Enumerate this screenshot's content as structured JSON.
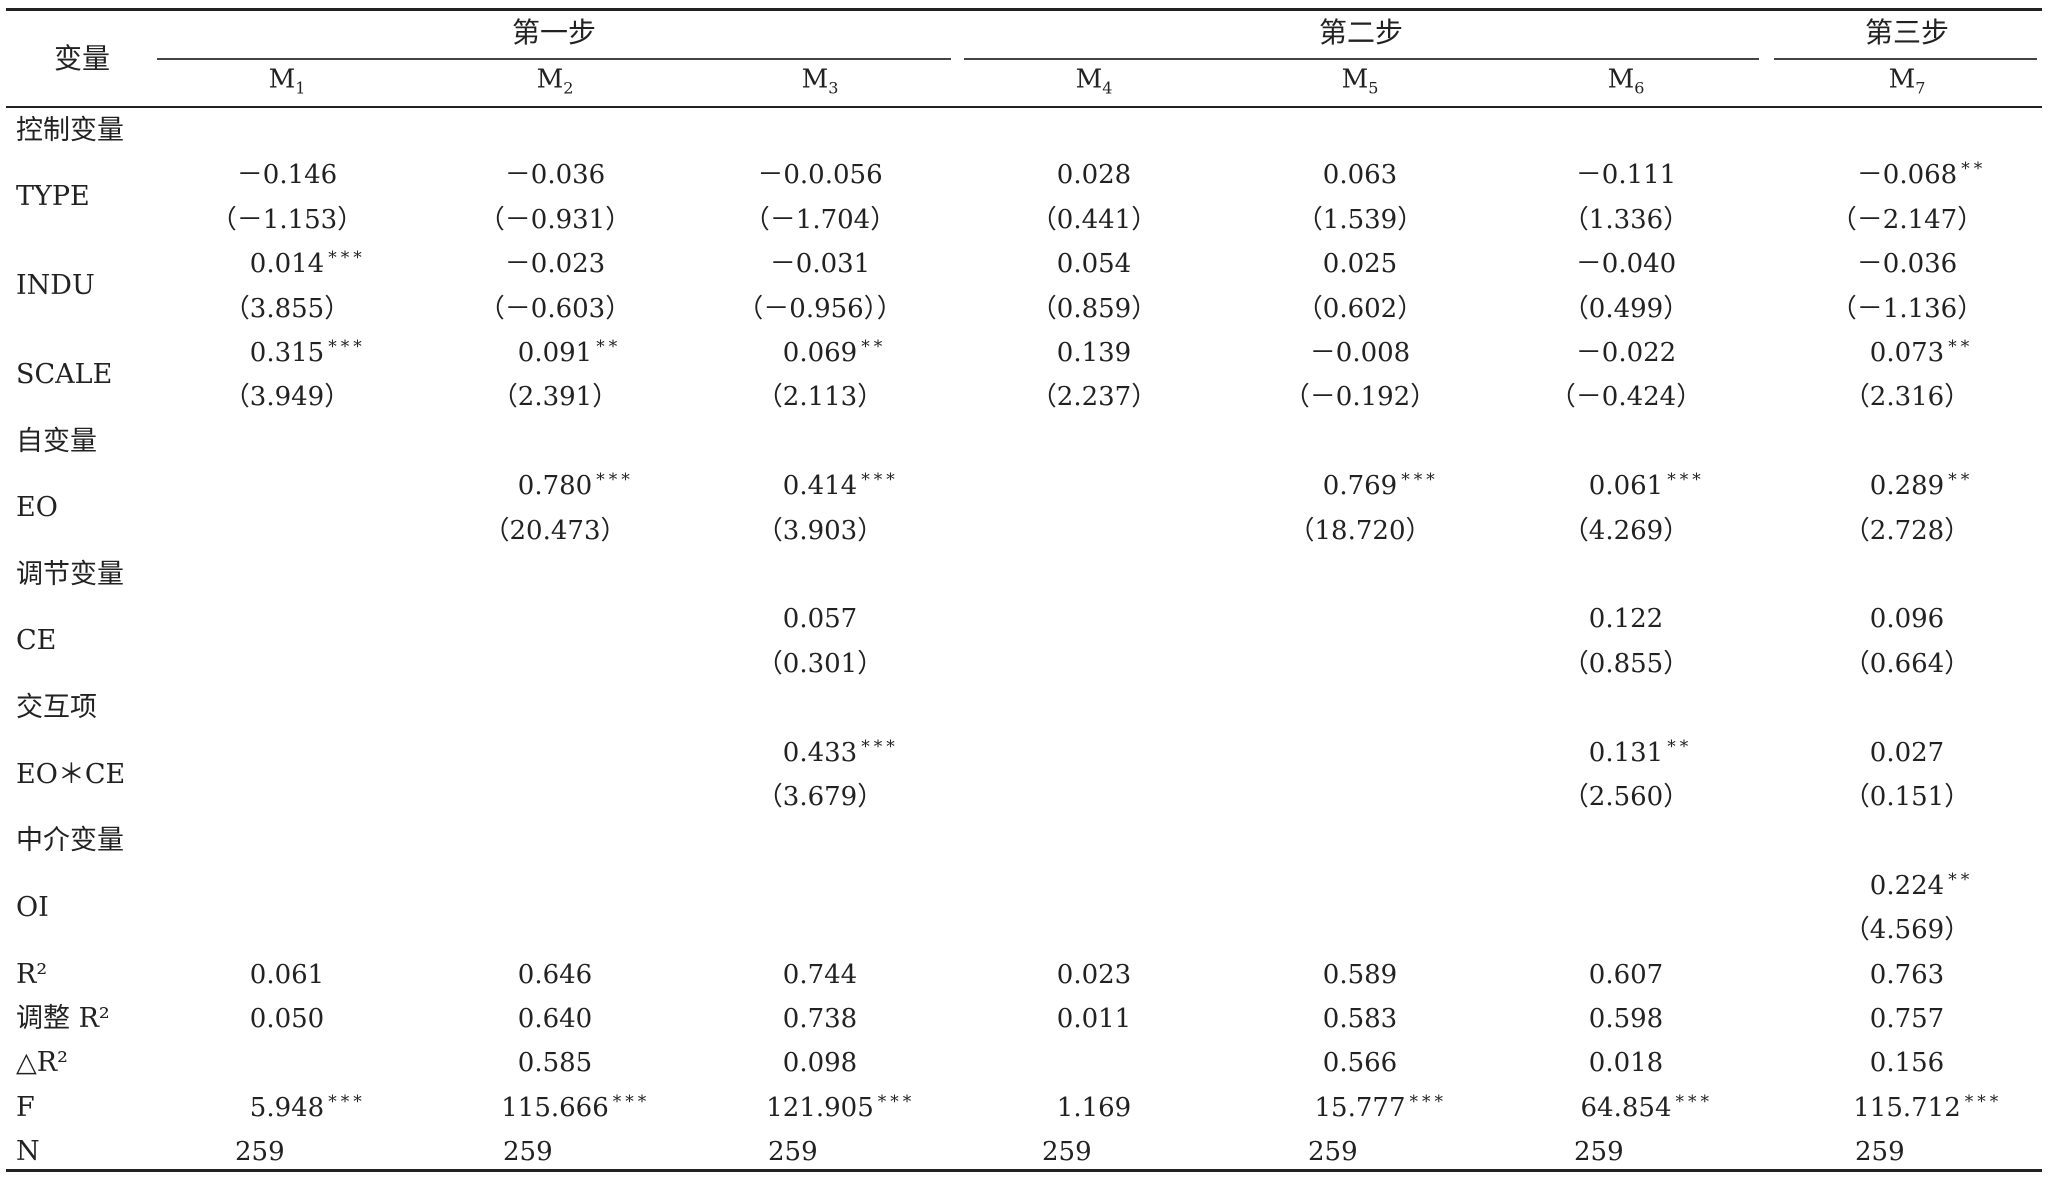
{
  "header": {
    "variable_label": "变量",
    "groups": [
      {
        "label": "第一步"
      },
      {
        "label": "第二步"
      },
      {
        "label": "第三步"
      }
    ],
    "models": [
      {
        "base": "M",
        "sub": "1"
      },
      {
        "base": "M",
        "sub": "2"
      },
      {
        "base": "M",
        "sub": "3"
      },
      {
        "base": "M",
        "sub": "4"
      },
      {
        "base": "M",
        "sub": "5"
      },
      {
        "base": "M",
        "sub": "6"
      },
      {
        "base": "M",
        "sub": "7"
      }
    ]
  },
  "rows": [
    {
      "kind": "section",
      "label": "控制变量"
    },
    {
      "kind": "var",
      "label": "TYPE",
      "coef": [
        "－0.146",
        "－0.036",
        "－0.0.056",
        "0.028",
        "0.063",
        "－0.111",
        "－0.068**"
      ],
      "t": [
        "（－1.153）",
        "（－0.931）",
        "（－1.704）",
        "（0.441）",
        "（1.539）",
        "（1.336）",
        "（－2.147）"
      ]
    },
    {
      "kind": "var",
      "label": "INDU",
      "coef": [
        "0.014***",
        "－0.023",
        "－0.031",
        "0.054",
        "0.025",
        "－0.040",
        "－0.036"
      ],
      "t": [
        "（3.855）",
        "（－0.603）",
        "（－0.956））",
        "（0.859）",
        "（0.602）",
        "（0.499）",
        "（－1.136）"
      ]
    },
    {
      "kind": "var",
      "label": "SCALE",
      "coef": [
        "0.315***",
        "0.091**",
        "0.069**",
        "0.139",
        "－0.008",
        "－0.022",
        "0.073**"
      ],
      "t": [
        "（3.949）",
        "（2.391）",
        "（2.113）",
        "（2.237）",
        "（－0.192）",
        "（－0.424）",
        "（2.316）"
      ]
    },
    {
      "kind": "section",
      "label": "自变量"
    },
    {
      "kind": "var",
      "label": "EO",
      "coef": [
        "",
        "0.780***",
        "0.414***",
        "",
        "0.769***",
        "0.061***",
        "0.289**"
      ],
      "t": [
        "",
        "（20.473）",
        "（3.903）",
        "",
        "（18.720）",
        "（4.269）",
        "（2.728）"
      ]
    },
    {
      "kind": "section",
      "label": "调节变量"
    },
    {
      "kind": "var",
      "label": "CE",
      "coef": [
        "",
        "",
        "0.057",
        "",
        "",
        "0.122",
        "0.096"
      ],
      "t": [
        "",
        "",
        "（0.301）",
        "",
        "",
        "（0.855）",
        "（0.664）"
      ]
    },
    {
      "kind": "section",
      "label": "交互项"
    },
    {
      "kind": "var",
      "label": "EO＊CE",
      "coef": [
        "",
        "",
        "0.433***",
        "",
        "",
        "0.131**",
        "0.027"
      ],
      "t": [
        "",
        "",
        "（3.679）",
        "",
        "",
        "（2.560）",
        "（0.151）"
      ]
    },
    {
      "kind": "section",
      "label": "中介变量"
    },
    {
      "kind": "var",
      "label": "OI",
      "coef": [
        "",
        "",
        "",
        "",
        "",
        "",
        "0.224**"
      ],
      "t": [
        "",
        "",
        "",
        "",
        "",
        "",
        "（4.569）"
      ]
    },
    {
      "kind": "stat",
      "label": "R²",
      "values": [
        "0.061",
        "0.646",
        "0.744",
        "0.023",
        "0.589",
        "0.607",
        "0.763"
      ]
    },
    {
      "kind": "stat",
      "label": "调整 R²",
      "values": [
        "0.050",
        "0.640",
        "0.738",
        "0.011",
        "0.583",
        "0.598",
        "0.757"
      ]
    },
    {
      "kind": "stat",
      "label": "△R²",
      "values": [
        "",
        "0.585",
        "0.098",
        "",
        "0.566",
        "0.018",
        "0.156"
      ]
    },
    {
      "kind": "stat",
      "label": "F",
      "values": [
        "5.948***",
        "115.666***",
        "121.905***",
        "1.169",
        "15.777***",
        "64.854***",
        "115.712***"
      ]
    },
    {
      "kind": "stat-left",
      "label": "N",
      "values": [
        "259",
        "259",
        "259",
        "259",
        "259",
        "259",
        "259"
      ]
    }
  ]
}
